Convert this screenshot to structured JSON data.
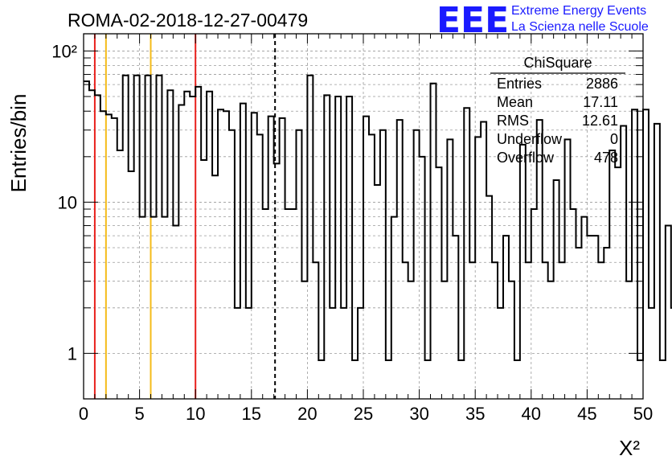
{
  "title": "ROMA-02-2018-12-27-00479",
  "logo": {
    "mark": "EEE",
    "line1": "Extreme Energy Events",
    "line2": "La Scienza nelle Scuole",
    "color": "#1a1aff"
  },
  "stats": {
    "title": "ChiSquare",
    "rows": [
      {
        "label": "Entries",
        "value": "2886"
      },
      {
        "label": "Mean",
        "value": "17.11"
      },
      {
        "label": "RMS",
        "value": "12.61"
      },
      {
        "label": "Underflow",
        "value": "0"
      },
      {
        "label": "Overflow",
        "value": "478"
      }
    ]
  },
  "chart_data": {
    "type": "histogram",
    "xlabel": "X²",
    "ylabel": "Entries/bin",
    "xlim": [
      0,
      50
    ],
    "ylim": [
      0.5,
      130
    ],
    "yscale": "log",
    "grid": true,
    "x_ticks": [
      "0",
      "5",
      "10",
      "15",
      "20",
      "25",
      "30",
      "35",
      "40",
      "45",
      "50"
    ],
    "y_ticks": [
      {
        "value": 1,
        "label": "1"
      },
      {
        "value": 10,
        "label": "10"
      },
      {
        "value": 100,
        "label": "10²"
      }
    ],
    "bin_width": 0.5,
    "values": [
      63,
      55,
      51,
      40,
      38,
      36,
      22,
      69,
      16,
      69,
      8,
      69,
      8,
      69,
      8,
      55,
      7,
      44,
      54,
      50,
      58,
      19,
      54,
      15,
      41,
      40,
      30,
      2,
      45,
      2,
      39,
      28,
      9,
      37,
      18,
      36,
      9,
      9,
      30,
      3,
      69,
      4,
      0.9,
      51,
      2,
      50,
      2,
      50,
      0.9,
      2,
      37,
      28,
      13,
      30,
      0.9,
      8,
      35,
      4,
      3,
      30,
      20,
      0.9,
      61,
      17,
      3,
      26,
      6,
      0.9,
      42,
      4,
      27,
      34,
      11,
      4,
      2,
      6,
      3,
      0.9,
      24,
      4,
      9,
      35,
      4,
      3,
      14,
      4,
      26,
      9,
      5,
      8,
      6,
      6,
      4,
      5,
      22,
      17,
      32,
      3,
      41,
      0.9,
      41,
      2,
      33,
      0.9,
      7,
      2,
      0.9,
      14,
      0.9,
      1,
      2,
      0.9,
      8,
      6,
      0.9,
      3,
      2,
      0,
      3,
      1,
      4,
      6,
      1,
      4,
      5,
      7,
      3,
      0.9,
      6,
      6,
      3,
      3,
      2,
      0.9,
      30,
      8,
      17,
      2,
      0.9,
      15,
      13,
      4,
      0.9,
      1,
      2,
      4,
      4,
      20,
      3,
      3,
      0.9,
      6,
      3,
      7,
      3,
      28,
      0.9,
      13,
      22,
      0.9,
      30,
      4,
      0.9,
      0.9,
      6,
      0.9,
      3,
      0.9,
      4,
      0.9,
      0.9,
      5,
      4,
      3,
      0.9,
      0.9,
      2,
      8,
      4,
      3
    ],
    "vlines": [
      {
        "x": 1,
        "color": "#e8201c",
        "style": "solid"
      },
      {
        "x": 2,
        "color": "#f5bc1a",
        "style": "solid"
      },
      {
        "x": 6,
        "color": "#f5bc1a",
        "style": "solid"
      },
      {
        "x": 10,
        "color": "#e8201c",
        "style": "solid"
      },
      {
        "x": 17.11,
        "color": "#000000",
        "style": "dashed"
      }
    ]
  }
}
